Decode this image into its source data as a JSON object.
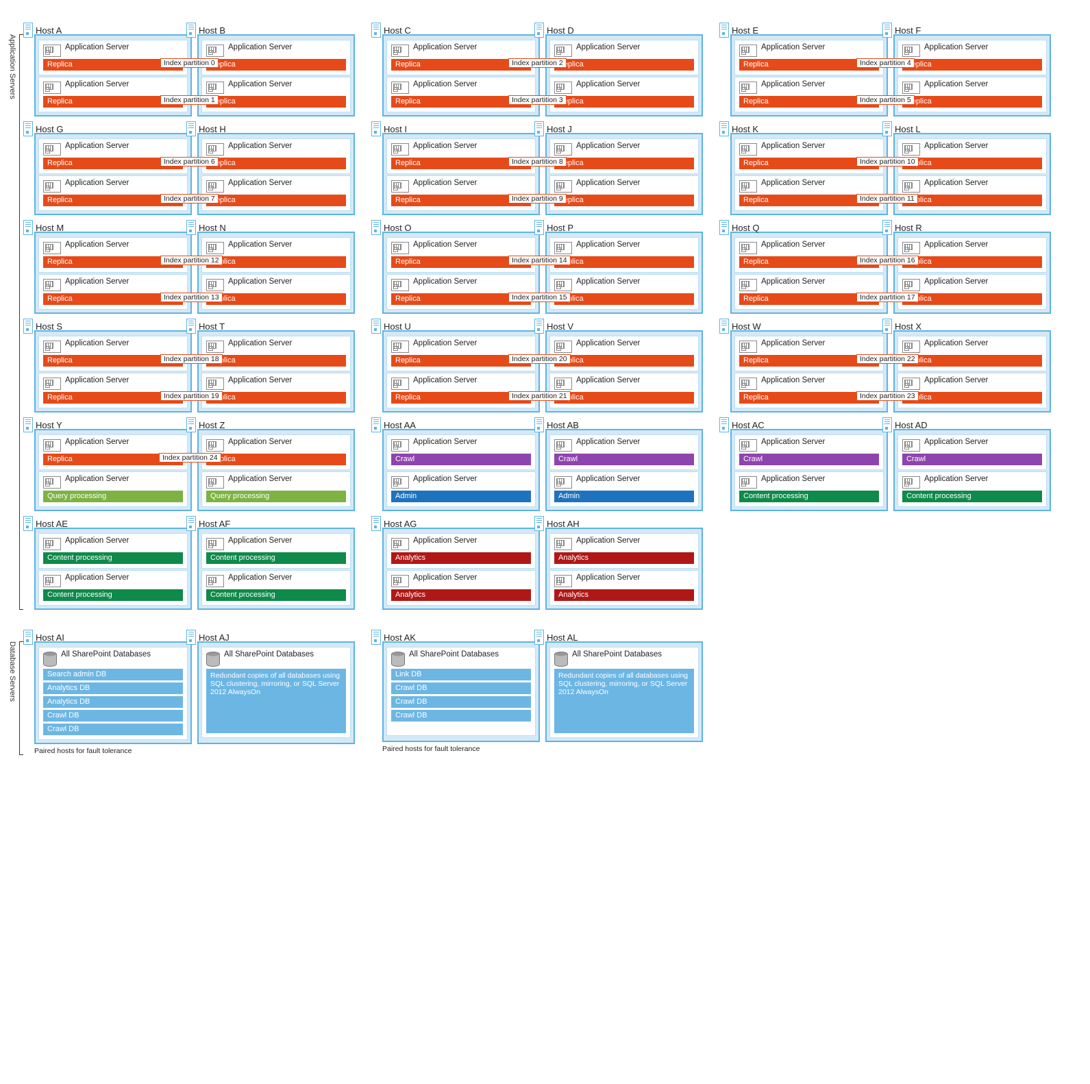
{
  "colors": {
    "hostBg": "#d4e9f7",
    "hostBorder": "#5eb3e4",
    "replica": "#e64a19",
    "crawl": "#8e44ad",
    "admin": "#1e73be",
    "content": "#0e8a4a",
    "query": "#7cb342",
    "analytics": "#b01818",
    "db": "#6cb6e4"
  },
  "sectionLabels": {
    "app": "Application Servers",
    "db": "Database Servers"
  },
  "labels": {
    "appServer": "Application Server",
    "allDb": "All SharePoint Databases",
    "replica": "Replica",
    "crawl": "Crawl",
    "admin": "Admin",
    "content": "Content processing",
    "query": "Query processing",
    "analytics": "Analytics",
    "pairCaption": "Paired hosts for fault tolerance",
    "redundant": "Redundant copies of all databases using SQL clustering, mirroring, or SQL Server 2012 AlwaysOn"
  },
  "dbLists": {
    "ai": [
      "Search admin DB",
      "Analytics DB",
      "Analytics DB",
      "Crawl DB",
      "Crawl DB"
    ],
    "ak": [
      "Link DB",
      "Crawl DB",
      "Crawl DB",
      "Crawl DB"
    ]
  },
  "indexPairs": [
    {
      "a": "Host A",
      "b": "Host B",
      "p": [
        "Index partition 0",
        "Index partition 1"
      ]
    },
    {
      "a": "Host C",
      "b": "Host D",
      "p": [
        "Index partition 2",
        "Index partition 3"
      ]
    },
    {
      "a": "Host E",
      "b": "Host F",
      "p": [
        "Index partition 4",
        "Index partition 5"
      ]
    },
    {
      "a": "Host G",
      "b": "Host H",
      "p": [
        "Index partition 6",
        "Index partition 7"
      ]
    },
    {
      "a": "Host I",
      "b": "Host J",
      "p": [
        "Index partition 8",
        "Index partition 9"
      ]
    },
    {
      "a": "Host K",
      "b": "Host L",
      "p": [
        "Index partition 10",
        "Index partition 11"
      ]
    },
    {
      "a": "Host M",
      "b": "Host N",
      "p": [
        "Index partition 12",
        "Index partition 13"
      ]
    },
    {
      "a": "Host O",
      "b": "Host P",
      "p": [
        "Index partition 14",
        "Index partition 15"
      ]
    },
    {
      "a": "Host Q",
      "b": "Host R",
      "p": [
        "Index partition 16",
        "Index partition 17"
      ]
    },
    {
      "a": "Host S",
      "b": "Host T",
      "p": [
        "Index partition 18",
        "Index partition 19"
      ]
    },
    {
      "a": "Host U",
      "b": "Host V",
      "p": [
        "Index partition 20",
        "Index partition 21"
      ]
    },
    {
      "a": "Host W",
      "b": "Host X",
      "p": [
        "Index partition 22",
        "Index partition 23"
      ]
    }
  ],
  "hostYZ": {
    "a": "Host Y",
    "b": "Host Z",
    "p": "Index partition 24"
  },
  "simplePairs": [
    {
      "a": "Host AA",
      "b": "Host AB",
      "top": "crawl",
      "bot": "admin"
    },
    {
      "a": "Host AC",
      "b": "Host AD",
      "top": "crawl",
      "bot": "content"
    }
  ],
  "aeaf": [
    {
      "a": "Host AE",
      "b": "Host AF",
      "top": "content",
      "bot": "content"
    },
    {
      "a": "Host AG",
      "b": "Host AH",
      "top": "analytics",
      "bot": "analytics"
    }
  ],
  "dbPairs": [
    {
      "a": "Host AI",
      "b": "Host AJ",
      "list": "ai"
    },
    {
      "a": "Host AK",
      "b": "Host AL",
      "list": "ak"
    }
  ]
}
